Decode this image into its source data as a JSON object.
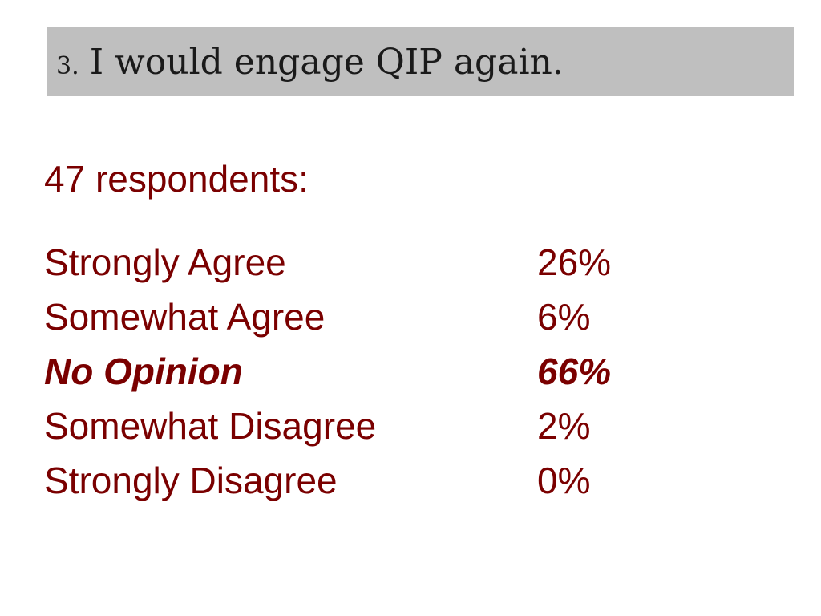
{
  "slide": {
    "number": "3.",
    "title": "I would engage QIP again.",
    "respondents_label": "47 respondents:",
    "responses": [
      {
        "label": "Strongly Agree",
        "percent": "26%"
      },
      {
        "label": "Somewhat Agree",
        "percent": "6%"
      },
      {
        "label": "No Opinion",
        "percent": "66%"
      },
      {
        "label": "Somewhat Disagree",
        "percent": "2%"
      },
      {
        "label": "Strongly Disagree",
        "percent": "0%"
      }
    ]
  },
  "colors": {
    "title_bar": "#bfbfbf",
    "title_text": "#1a1a1a",
    "body_text": "#7a0000",
    "background": "#ffffff"
  }
}
